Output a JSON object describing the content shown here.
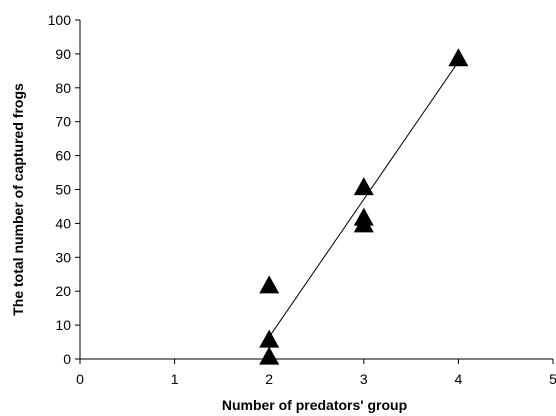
{
  "chart_data": {
    "type": "scatter",
    "xlabel": "Number of predators' group",
    "ylabel": "The total number of captured frogs",
    "xlim": [
      0,
      5
    ],
    "ylim": [
      0,
      100
    ],
    "x_ticks": [
      0,
      1,
      2,
      3,
      4,
      5
    ],
    "y_ticks": [
      0,
      10,
      20,
      30,
      40,
      50,
      60,
      70,
      80,
      90,
      100
    ],
    "grid": false,
    "legend": "none",
    "marker": "triangle",
    "color": "#000000",
    "series": [
      {
        "points": [
          {
            "x": 2,
            "y": 1
          },
          {
            "x": 2,
            "y": 6
          },
          {
            "x": 2,
            "y": 22
          },
          {
            "x": 3,
            "y": 40
          },
          {
            "x": 3,
            "y": 42
          },
          {
            "x": 3,
            "y": 51
          },
          {
            "x": 4,
            "y": 89
          }
        ]
      }
    ],
    "trendline": {
      "type": "linear",
      "x_start": 2,
      "x_end": 4,
      "y_start": 6.5,
      "y_end": 87.7
    }
  }
}
